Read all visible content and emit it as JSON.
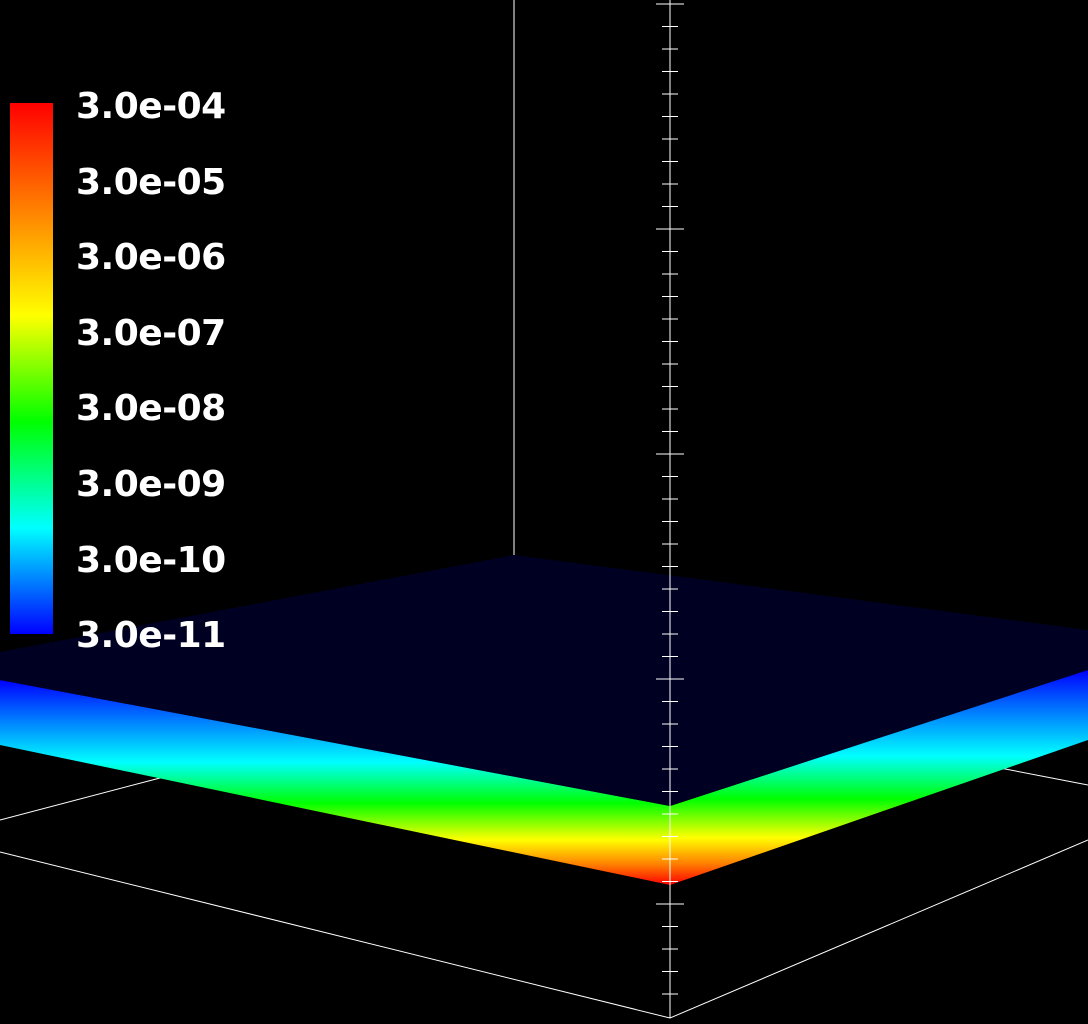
{
  "scalar_bar": {
    "labels": [
      "3.0e-04",
      "3.0e-05",
      "3.0e-06",
      "3.0e-07",
      "3.0e-08",
      "3.0e-09",
      "3.0e-10",
      "3.0e-11"
    ],
    "colormap": [
      "#ff0000",
      "#ff8000",
      "#ffff00",
      "#00ff00",
      "#00ffff",
      "#0000ff"
    ],
    "scale": "log"
  },
  "scene": {
    "background_color": "#000000",
    "slab_top_color": "#000022",
    "axes_color": "#ffffff"
  }
}
